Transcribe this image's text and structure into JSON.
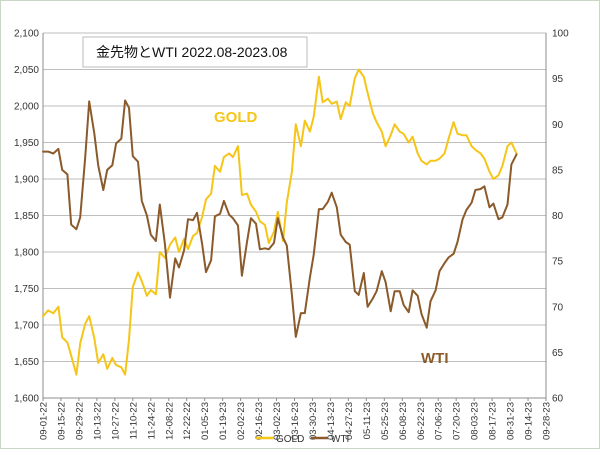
{
  "chart_data": {
    "type": "line",
    "title": "金先物とWTI 2022.08-2023.08",
    "grid": "horizontal",
    "legend_position": "bottom",
    "y_left": {
      "min": 1600,
      "max": 2100,
      "step": 50,
      "tick_labels": [
        "1,600",
        "1,650",
        "1,700",
        "1,750",
        "1,800",
        "1,850",
        "1,900",
        "1,950",
        "2,000",
        "2,050",
        "2,100"
      ]
    },
    "y_right": {
      "min": 60,
      "max": 100,
      "step": 5,
      "tick_labels": [
        "60",
        "65",
        "70",
        "75",
        "80",
        "85",
        "90",
        "95",
        "100"
      ]
    },
    "x_range": [
      "2022-09-01",
      "2023-09-28"
    ],
    "x_tick_labels": [
      "09-01-22",
      "09-15-22",
      "09-29-22",
      "10-13-22",
      "10-27-22",
      "11-10-22",
      "11-24-22",
      "12-08-22",
      "12-22-22",
      "01-05-23",
      "01-19-23",
      "02-02-23",
      "02-16-23",
      "03-02-23",
      "03-16-23",
      "03-30-23",
      "04-13-23",
      "04-27-23",
      "05-11-23",
      "05-25-23",
      "06-08-23",
      "06-22-23",
      "07-06-23",
      "07-20-23",
      "08-03-23",
      "08-17-23",
      "08-31-23",
      "09-14-23",
      "09-28-23"
    ],
    "series": [
      {
        "name": "GOLD",
        "axis": "left",
        "color": "#f5c518",
        "inline_label": "GOLD",
        "points": [
          [
            "2022-09-01",
            1712
          ],
          [
            "2022-09-05",
            1720
          ],
          [
            "2022-09-09",
            1716
          ],
          [
            "2022-09-13",
            1725
          ],
          [
            "2022-09-16",
            1683
          ],
          [
            "2022-09-20",
            1676
          ],
          [
            "2022-09-23",
            1658
          ],
          [
            "2022-09-27",
            1632
          ],
          [
            "2022-09-30",
            1675
          ],
          [
            "2022-10-04",
            1702
          ],
          [
            "2022-10-07",
            1712
          ],
          [
            "2022-10-11",
            1682
          ],
          [
            "2022-10-14",
            1648
          ],
          [
            "2022-10-18",
            1660
          ],
          [
            "2022-10-21",
            1640
          ],
          [
            "2022-10-25",
            1655
          ],
          [
            "2022-10-28",
            1645
          ],
          [
            "2022-11-01",
            1642
          ],
          [
            "2022-11-04",
            1632
          ],
          [
            "2022-11-07",
            1680
          ],
          [
            "2022-11-10",
            1752
          ],
          [
            "2022-11-14",
            1772
          ],
          [
            "2022-11-17",
            1760
          ],
          [
            "2022-11-21",
            1740
          ],
          [
            "2022-11-24",
            1748
          ],
          [
            "2022-11-28",
            1742
          ],
          [
            "2022-12-01",
            1800
          ],
          [
            "2022-12-05",
            1792
          ],
          [
            "2022-12-09",
            1810
          ],
          [
            "2022-12-13",
            1820
          ],
          [
            "2022-12-16",
            1800
          ],
          [
            "2022-12-20",
            1818
          ],
          [
            "2022-12-23",
            1804
          ],
          [
            "2022-12-27",
            1822
          ],
          [
            "2022-12-30",
            1826
          ],
          [
            "2023-01-03",
            1848
          ],
          [
            "2023-01-06",
            1872
          ],
          [
            "2023-01-10",
            1880
          ],
          [
            "2023-01-13",
            1918
          ],
          [
            "2023-01-17",
            1910
          ],
          [
            "2023-01-20",
            1930
          ],
          [
            "2023-01-24",
            1935
          ],
          [
            "2023-01-27",
            1930
          ],
          [
            "2023-01-31",
            1945
          ],
          [
            "2023-02-03",
            1878
          ],
          [
            "2023-02-07",
            1880
          ],
          [
            "2023-02-10",
            1865
          ],
          [
            "2023-02-14",
            1855
          ],
          [
            "2023-02-17",
            1842
          ],
          [
            "2023-02-21",
            1837
          ],
          [
            "2023-02-24",
            1812
          ],
          [
            "2023-02-28",
            1828
          ],
          [
            "2023-03-03",
            1855
          ],
          [
            "2023-03-07",
            1815
          ],
          [
            "2023-03-10",
            1868
          ],
          [
            "2023-03-14",
            1910
          ],
          [
            "2023-03-17",
            1975
          ],
          [
            "2023-03-21",
            1945
          ],
          [
            "2023-03-24",
            1980
          ],
          [
            "2023-03-28",
            1965
          ],
          [
            "2023-03-31",
            1985
          ],
          [
            "2023-04-04",
            2040
          ],
          [
            "2023-04-07",
            2005
          ],
          [
            "2023-04-11",
            2010
          ],
          [
            "2023-04-14",
            2003
          ],
          [
            "2023-04-18",
            2006
          ],
          [
            "2023-04-21",
            1982
          ],
          [
            "2023-04-25",
            2005
          ],
          [
            "2023-04-28",
            2000
          ],
          [
            "2023-05-02",
            2038
          ],
          [
            "2023-05-05",
            2050
          ],
          [
            "2023-05-09",
            2040
          ],
          [
            "2023-05-12",
            2018
          ],
          [
            "2023-05-16",
            1990
          ],
          [
            "2023-05-19",
            1978
          ],
          [
            "2023-05-23",
            1965
          ],
          [
            "2023-05-26",
            1945
          ],
          [
            "2023-05-30",
            1960
          ],
          [
            "2023-06-02",
            1975
          ],
          [
            "2023-06-06",
            1965
          ],
          [
            "2023-06-09",
            1962
          ],
          [
            "2023-06-13",
            1950
          ],
          [
            "2023-06-16",
            1958
          ],
          [
            "2023-06-20",
            1935
          ],
          [
            "2023-06-23",
            1925
          ],
          [
            "2023-06-27",
            1920
          ],
          [
            "2023-06-30",
            1925
          ],
          [
            "2023-07-04",
            1925
          ],
          [
            "2023-07-07",
            1928
          ],
          [
            "2023-07-11",
            1935
          ],
          [
            "2023-07-14",
            1955
          ],
          [
            "2023-07-18",
            1978
          ],
          [
            "2023-07-21",
            1962
          ],
          [
            "2023-07-25",
            1960
          ],
          [
            "2023-07-28",
            1960
          ],
          [
            "2023-08-01",
            1945
          ],
          [
            "2023-08-04",
            1940
          ],
          [
            "2023-08-08",
            1935
          ],
          [
            "2023-08-11",
            1928
          ],
          [
            "2023-08-15",
            1910
          ],
          [
            "2023-08-18",
            1900
          ],
          [
            "2023-08-22",
            1905
          ],
          [
            "2023-08-25",
            1918
          ],
          [
            "2023-08-29",
            1945
          ],
          [
            "2023-09-01",
            1950
          ],
          [
            "2023-09-05",
            1935
          ]
        ]
      },
      {
        "name": "WTI",
        "axis": "right",
        "color": "#8b5a2b",
        "inline_label": "WTI",
        "points": [
          [
            "2022-09-01",
            87
          ],
          [
            "2022-09-05",
            87
          ],
          [
            "2022-09-09",
            86.8
          ],
          [
            "2022-09-13",
            87.3
          ],
          [
            "2022-09-16",
            85
          ],
          [
            "2022-09-20",
            84.5
          ],
          [
            "2022-09-23",
            79
          ],
          [
            "2022-09-27",
            78.5
          ],
          [
            "2022-09-30",
            79.8
          ],
          [
            "2022-10-04",
            86.5
          ],
          [
            "2022-10-07",
            92.5
          ],
          [
            "2022-10-11",
            89
          ],
          [
            "2022-10-14",
            85.5
          ],
          [
            "2022-10-18",
            82.8
          ],
          [
            "2022-10-21",
            85
          ],
          [
            "2022-10-25",
            85.5
          ],
          [
            "2022-10-28",
            87.9
          ],
          [
            "2022-11-01",
            88.4
          ],
          [
            "2022-11-04",
            92.6
          ],
          [
            "2022-11-07",
            91.8
          ],
          [
            "2022-11-10",
            86.5
          ],
          [
            "2022-11-14",
            85.9
          ],
          [
            "2022-11-17",
            81.6
          ],
          [
            "2022-11-21",
            80
          ],
          [
            "2022-11-24",
            77.9
          ],
          [
            "2022-11-28",
            77.2
          ],
          [
            "2022-12-01",
            81.2
          ],
          [
            "2022-12-05",
            76.9
          ],
          [
            "2022-12-09",
            71
          ],
          [
            "2022-12-13",
            75.3
          ],
          [
            "2022-12-16",
            74.3
          ],
          [
            "2022-12-20",
            76.2
          ],
          [
            "2022-12-23",
            79.6
          ],
          [
            "2022-12-27",
            79.5
          ],
          [
            "2022-12-30",
            80.3
          ],
          [
            "2023-01-03",
            76.9
          ],
          [
            "2023-01-06",
            73.8
          ],
          [
            "2023-01-10",
            75.1
          ],
          [
            "2023-01-13",
            79.9
          ],
          [
            "2023-01-17",
            80.2
          ],
          [
            "2023-01-20",
            81.6
          ],
          [
            "2023-01-24",
            80.1
          ],
          [
            "2023-01-27",
            79.7
          ],
          [
            "2023-01-31",
            78.9
          ],
          [
            "2023-02-03",
            73.4
          ],
          [
            "2023-02-07",
            77.1
          ],
          [
            "2023-02-10",
            79.7
          ],
          [
            "2023-02-14",
            79.1
          ],
          [
            "2023-02-17",
            76.3
          ],
          [
            "2023-02-21",
            76.4
          ],
          [
            "2023-02-24",
            76.3
          ],
          [
            "2023-02-28",
            77
          ],
          [
            "2023-03-03",
            79.7
          ],
          [
            "2023-03-07",
            77.6
          ],
          [
            "2023-03-10",
            76.7
          ],
          [
            "2023-03-14",
            71.3
          ],
          [
            "2023-03-17",
            66.7
          ],
          [
            "2023-03-21",
            69.3
          ],
          [
            "2023-03-24",
            69.3
          ],
          [
            "2023-03-28",
            73.2
          ],
          [
            "2023-03-31",
            75.7
          ],
          [
            "2023-04-04",
            80.7
          ],
          [
            "2023-04-07",
            80.7
          ],
          [
            "2023-04-11",
            81.5
          ],
          [
            "2023-04-14",
            82.5
          ],
          [
            "2023-04-18",
            80.9
          ],
          [
            "2023-04-21",
            77.9
          ],
          [
            "2023-04-25",
            77.1
          ],
          [
            "2023-04-28",
            76.8
          ],
          [
            "2023-05-02",
            71.7
          ],
          [
            "2023-05-05",
            71.3
          ],
          [
            "2023-05-09",
            73.7
          ],
          [
            "2023-05-12",
            70
          ],
          [
            "2023-05-16",
            70.9
          ],
          [
            "2023-05-19",
            71.7
          ],
          [
            "2023-05-23",
            73.9
          ],
          [
            "2023-05-26",
            72.7
          ],
          [
            "2023-05-30",
            69.5
          ],
          [
            "2023-06-02",
            71.7
          ],
          [
            "2023-06-06",
            71.7
          ],
          [
            "2023-06-09",
            70.2
          ],
          [
            "2023-06-13",
            69.4
          ],
          [
            "2023-06-16",
            71.8
          ],
          [
            "2023-06-20",
            71.2
          ],
          [
            "2023-06-23",
            69.2
          ],
          [
            "2023-06-27",
            67.7
          ],
          [
            "2023-06-30",
            70.6
          ],
          [
            "2023-07-04",
            71.8
          ],
          [
            "2023-07-07",
            73.9
          ],
          [
            "2023-07-11",
            74.8
          ],
          [
            "2023-07-14",
            75.4
          ],
          [
            "2023-07-18",
            75.8
          ],
          [
            "2023-07-21",
            77.1
          ],
          [
            "2023-07-25",
            79.6
          ],
          [
            "2023-07-28",
            80.6
          ],
          [
            "2023-08-01",
            81.4
          ],
          [
            "2023-08-04",
            82.8
          ],
          [
            "2023-08-08",
            82.9
          ],
          [
            "2023-08-11",
            83.2
          ],
          [
            "2023-08-15",
            80.9
          ],
          [
            "2023-08-18",
            81.3
          ],
          [
            "2023-08-22",
            79.6
          ],
          [
            "2023-08-25",
            79.8
          ],
          [
            "2023-08-29",
            81.2
          ],
          [
            "2023-09-01",
            85.6
          ],
          [
            "2023-09-05",
            86.7
          ]
        ]
      }
    ]
  }
}
